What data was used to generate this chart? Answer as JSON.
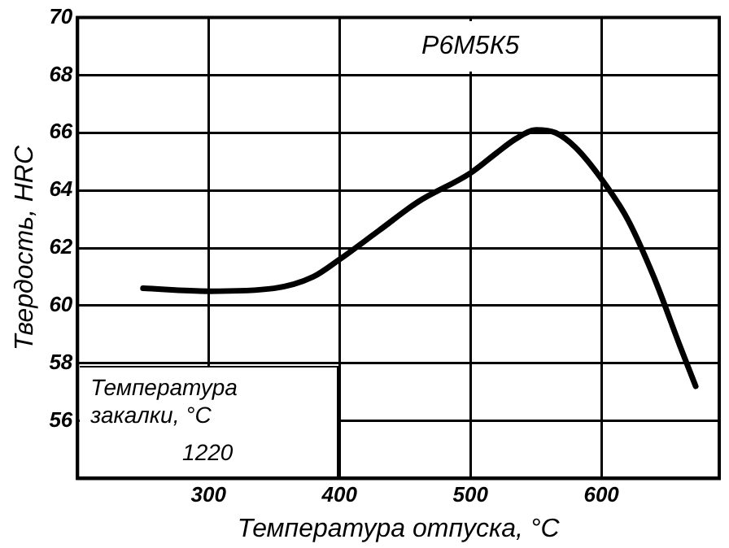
{
  "chart_data": {
    "type": "line",
    "title": "Р6М5К5",
    "xlabel": "Температура отпуска, °C",
    "ylabel": "Твердость, HRC",
    "annotations": [
      "Температура\nзакалки, °C",
      "1220"
    ],
    "series": [
      {
        "color": "#000000",
        "x": [
          250,
          300,
          350,
          380,
          400,
          430,
          460,
          500,
          520,
          535,
          550,
          565,
          580,
          600,
          620,
          640,
          660,
          672
        ],
        "values": [
          60.6,
          60.5,
          60.6,
          61.0,
          61.6,
          62.6,
          63.6,
          64.6,
          65.3,
          65.8,
          66.1,
          66.0,
          65.5,
          64.4,
          63.0,
          61.0,
          58.6,
          57.2
        ]
      }
    ],
    "xlim": [
      200,
      690
    ],
    "xticks": [
      300,
      400,
      500,
      600
    ],
    "ylim": [
      54,
      70
    ],
    "yticks": [
      56,
      58,
      60,
      62,
      64,
      66,
      68,
      70
    ],
    "grid": true,
    "legend": false,
    "marker": "none",
    "line_style": "solid"
  }
}
